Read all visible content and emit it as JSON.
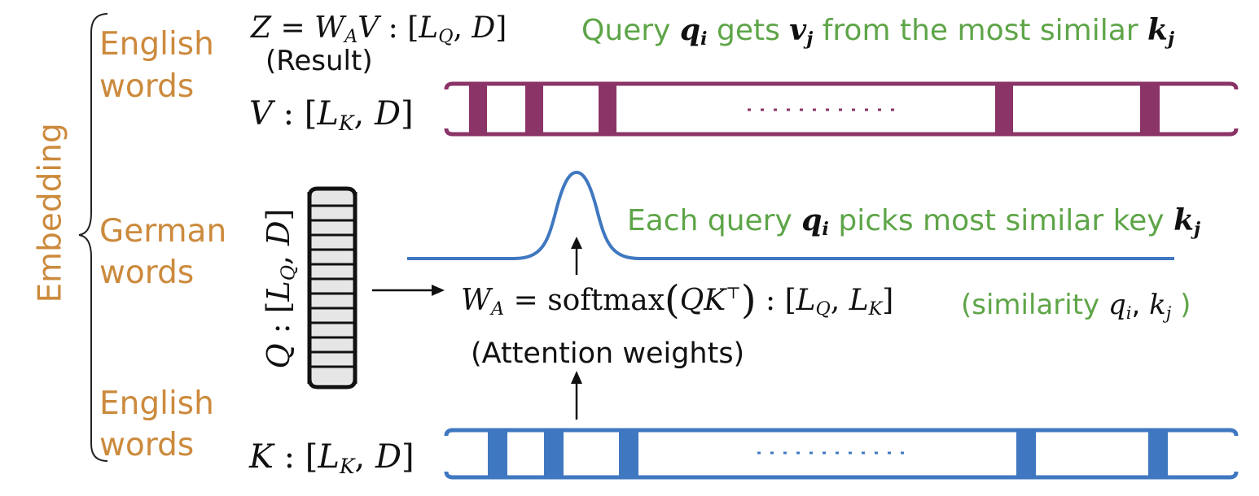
{
  "groups": {
    "embedding": "Embedding",
    "english_top_1": "English",
    "english_top_2": "words",
    "german_1": "German",
    "german_2": "words",
    "english_bottom_1": "English",
    "english_bottom_2": "words"
  },
  "labels": {
    "result_note": "(Result)",
    "attention_note": "(Attention weights)",
    "query_gets_1": "Query",
    "query_gets_2": "gets",
    "query_gets_3": "from the most similar",
    "each_query_1": "Each query",
    "each_query_2": "picks most similar key",
    "similarity_1": "(similarity",
    "similarity_2": ")",
    "softmax": "softmax"
  },
  "symbols": {
    "Z": "Z",
    "W": "W",
    "A": "A",
    "V": "V",
    "L": "L",
    "Q": "Q",
    "K": "K",
    "D": "D",
    "q": "q",
    "k": "k",
    "v": "v",
    "i": "i",
    "j": "j",
    "top": "⊤"
  },
  "colors": {
    "orange": "#cc8a3d",
    "green": "#5ea548",
    "value_bar": "#8b3467",
    "key_bar": "#3f78c0",
    "curve": "#3f78c0",
    "query_cells": "#e6e6e6"
  },
  "value_stripes": 5,
  "key_stripes": 5,
  "query_rows": 12
}
